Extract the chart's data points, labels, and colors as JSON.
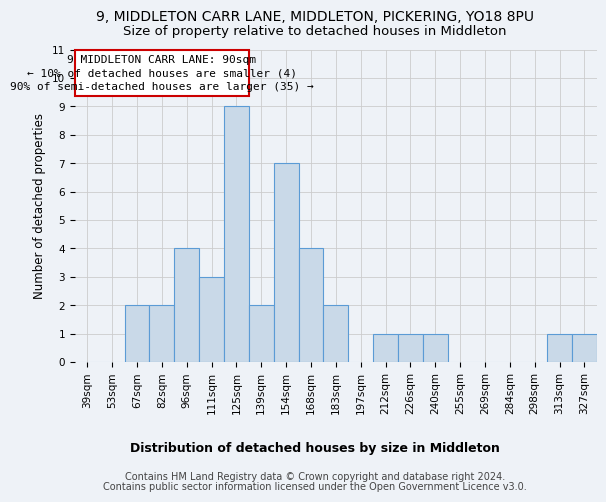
{
  "title": "9, MIDDLETON CARR LANE, MIDDLETON, PICKERING, YO18 8PU",
  "subtitle": "Size of property relative to detached houses in Middleton",
  "xlabel": "Distribution of detached houses by size in Middleton",
  "ylabel": "Number of detached properties",
  "footnote1": "Contains HM Land Registry data © Crown copyright and database right 2024.",
  "footnote2": "Contains public sector information licensed under the Open Government Licence v3.0.",
  "annotation_line1": "9 MIDDLETON CARR LANE: 90sqm",
  "annotation_line2": "← 10% of detached houses are smaller (4)",
  "annotation_line3": "90% of semi-detached houses are larger (35) →",
  "bar_labels": [
    "39sqm",
    "53sqm",
    "67sqm",
    "82sqm",
    "96sqm",
    "111sqm",
    "125sqm",
    "139sqm",
    "154sqm",
    "168sqm",
    "183sqm",
    "197sqm",
    "212sqm",
    "226sqm",
    "240sqm",
    "255sqm",
    "269sqm",
    "284sqm",
    "298sqm",
    "313sqm",
    "327sqm"
  ],
  "bar_values": [
    0,
    0,
    2,
    2,
    4,
    3,
    9,
    2,
    7,
    4,
    2,
    0,
    1,
    1,
    1,
    0,
    0,
    0,
    0,
    1,
    1
  ],
  "bar_color": "#c9d9e8",
  "bar_edge_color": "#5b9bd5",
  "annotation_box_edge": "#cc0000",
  "ylim": [
    0,
    11
  ],
  "yticks": [
    0,
    1,
    2,
    3,
    4,
    5,
    6,
    7,
    8,
    9,
    10,
    11
  ],
  "grid_color": "#cccccc",
  "background_color": "#eef2f7",
  "title_fontsize": 10,
  "subtitle_fontsize": 9.5,
  "annotation_fontsize": 8,
  "xlabel_fontsize": 9,
  "ylabel_fontsize": 8.5,
  "tick_fontsize": 7.5,
  "footnote_fontsize": 7
}
